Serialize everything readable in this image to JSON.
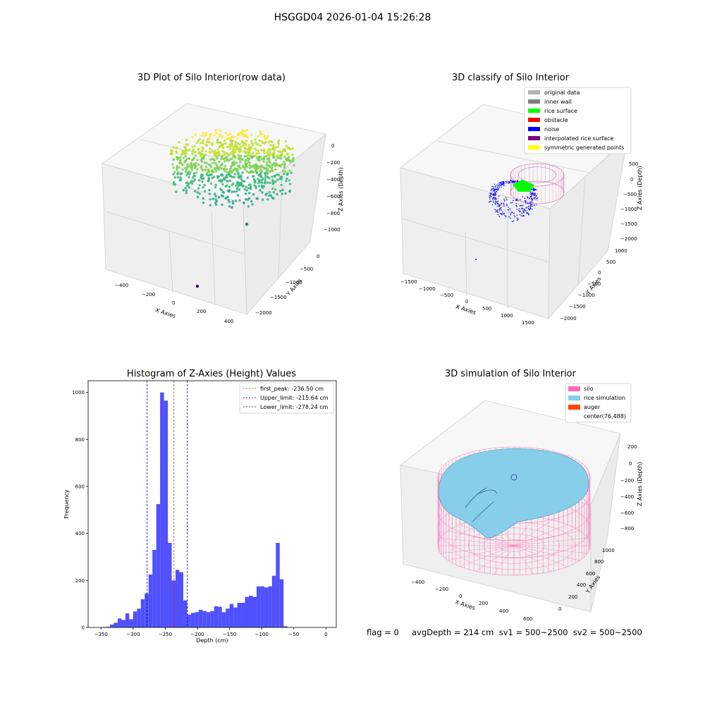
{
  "suptitle": "HSGGD04 2026-01-04 15:26:28",
  "footer": "flag = 0     avgDepth = 214 cm  sv1 = 500~2500  sv2 = 500~2500",
  "colors": {
    "hist_bar": "#5050ff",
    "first_peak": "#d62728",
    "limits": "#0000cc",
    "original": "#b3b3b3",
    "inner_wall": "#808080",
    "rice_surface": "#00ff00",
    "obstacle": "#ff0000",
    "noise": "#0000ff",
    "interpolated": "#800080",
    "symmetric": "#ffff00",
    "silo": "#ff69b4",
    "rice_sim": "#87ceeb",
    "auger": "#ff4500"
  },
  "chart_data": [
    {
      "type": "scatter",
      "title": "3D Plot of Silo Interior(row data)",
      "xlabel": "X Axies",
      "ylabel": "Y Axies",
      "zlabel": "Z Axies (Depth)",
      "xticks": [
        "−400",
        "−200",
        "0",
        "200",
        "400"
      ],
      "yticks": [
        "0",
        "−500",
        "−1000",
        "−1500",
        "−2000"
      ],
      "zticks": [
        "0",
        "−200",
        "−400",
        "−600",
        "−800",
        "−1000"
      ],
      "colormap": "viridis"
    },
    {
      "type": "scatter",
      "title": "3D classify of Silo Interior",
      "xlabel": "X Axies",
      "ylabel": "Y Axies",
      "zlabel": "Z Axies (Depth)",
      "xticks": [
        "−1500",
        "−1000",
        "−500",
        "0",
        "500",
        "1000",
        "1500"
      ],
      "yticks": [
        "1000",
        "500",
        "0",
        "−500",
        "−1000",
        "−1500",
        "−2000"
      ],
      "zticks": [
        "500",
        "0",
        "−500",
        "−1000",
        "−1500",
        "−2000"
      ],
      "legend": [
        {
          "label": "original data",
          "color": "#b3b3b3"
        },
        {
          "label": "inner wall",
          "color": "#808080"
        },
        {
          "label": "rice surface",
          "color": "#00ff00"
        },
        {
          "label": "obstacle",
          "color": "#ff0000"
        },
        {
          "label": "noise",
          "color": "#0000ff"
        },
        {
          "label": "interpolated rice surface",
          "color": "#800080"
        },
        {
          "label": "symmetric generated points",
          "color": "#ffff00"
        }
      ]
    },
    {
      "type": "bar",
      "title": "Histogram of Z-Axies (Height) Values",
      "xlabel": "Depth (cm)",
      "ylabel": "Frequency",
      "xlim": [
        -370,
        16
      ],
      "ylim": [
        0,
        1050
      ],
      "xticks": [
        -350,
        -300,
        -250,
        -200,
        -150,
        -100,
        -50,
        0
      ],
      "xtick_labels": [
        "−350",
        "−300",
        "−250",
        "−200",
        "−150",
        "−100",
        "−50",
        "0"
      ],
      "yticks": [
        0,
        200,
        400,
        600,
        800,
        1000
      ],
      "bin_start": -348,
      "bin_width": 6,
      "values": [
        2,
        3,
        12,
        20,
        38,
        32,
        60,
        35,
        68,
        80,
        120,
        145,
        225,
        330,
        525,
        1000,
        965,
        360,
        200,
        245,
        235,
        115,
        55,
        62,
        65,
        75,
        70,
        65,
        70,
        90,
        88,
        65,
        80,
        100,
        85,
        105,
        105,
        130,
        135,
        130,
        175,
        175,
        170,
        175,
        220,
        360,
        205,
        5
      ],
      "vlines": [
        {
          "label": "first_peak: -236.50 cm",
          "x": -236.5,
          "color": "#d62728"
        },
        {
          "label": "Upper_limit: -215.64 cm",
          "x": -215.64,
          "color": "#0000cc"
        },
        {
          "label": "Lower_limit: -278.24 cm",
          "x": -278.24,
          "color": "#0000cc"
        }
      ],
      "legend_position": "top-right",
      "grid": false
    },
    {
      "type": "area",
      "title": "3D simulation of Silo Interior",
      "xlabel": "X Axies",
      "ylabel": "Y Axies",
      "zlabel": "Z Axies (Depth)",
      "xticks": [
        "−400",
        "−200",
        "0",
        "200",
        "400",
        "600"
      ],
      "yticks": [
        "0",
        "200",
        "400",
        "600",
        "800",
        "1000"
      ],
      "zticks": [
        "200",
        "0",
        "−200",
        "−400",
        "−600",
        "−800"
      ],
      "legend": [
        {
          "label": "silo",
          "color": "#ff69b4"
        },
        {
          "label": "rice simulation",
          "color": "#87ceeb"
        },
        {
          "label": "auger",
          "color": "#ff4500"
        },
        {
          "label": "center(76,488)",
          "color": ""
        }
      ]
    }
  ]
}
